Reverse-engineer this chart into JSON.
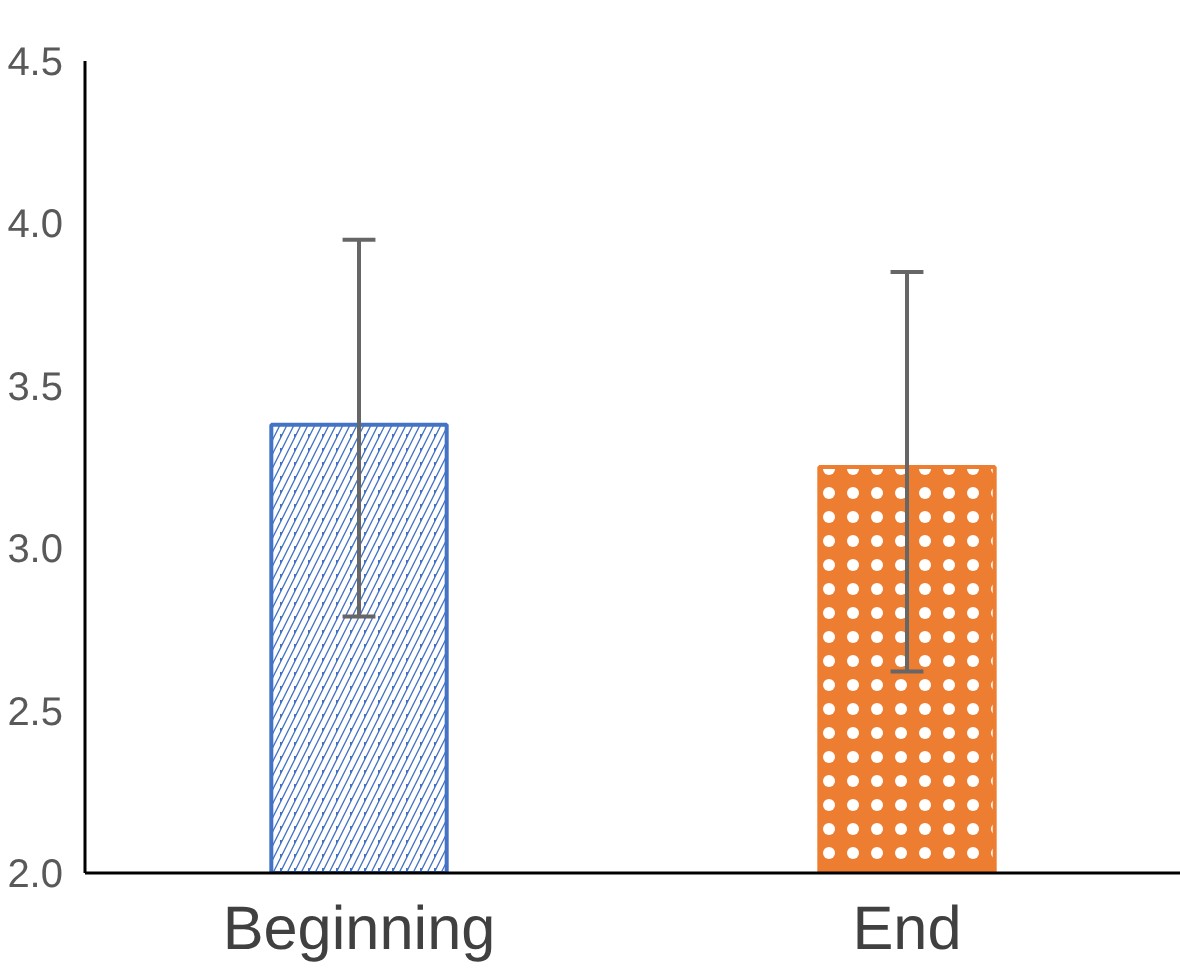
{
  "chart_data": {
    "type": "bar",
    "categories": [
      "Beginning",
      "End"
    ],
    "values": [
      3.38,
      3.25
    ],
    "colors": [
      "#4472c4",
      "#ed7d31"
    ],
    "errors": [
      [
        2.79,
        3.95
      ],
      [
        2.62,
        3.85
      ]
    ],
    "ylim": [
      2.0,
      4.5
    ],
    "yticks": [
      {
        "value": 2.0,
        "label": "2.0"
      },
      {
        "value": 2.5,
        "label": "2.5"
      },
      {
        "value": 3.0,
        "label": "3.0"
      },
      {
        "value": 3.5,
        "label": "3.5"
      },
      {
        "value": 4.0,
        "label": "4.0"
      },
      {
        "value": 4.5,
        "label": "4.5"
      }
    ],
    "grid": false
  }
}
